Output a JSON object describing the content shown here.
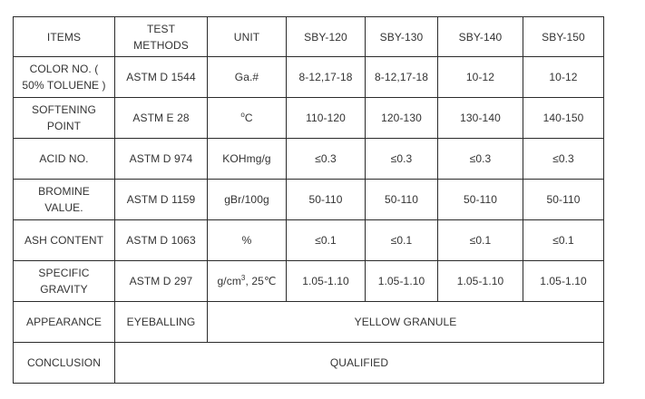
{
  "header": {
    "items": "ITEMS",
    "test_methods": "TEST METHODS",
    "unit": "UNIT",
    "grades": [
      "SBY-120",
      "SBY-130",
      "SBY-140",
      "SBY-150"
    ]
  },
  "rows": [
    {
      "item": "COLOR NO. ( 50% TOLUENE )",
      "method": "ASTM D 1544",
      "unit": "Ga.#",
      "values": [
        "8-12,17-18",
        "8-12,17-18",
        "10-12",
        "10-12"
      ]
    },
    {
      "item": "SOFTENING POINT",
      "method": "ASTM E 28",
      "unit_sup": "o",
      "unit_main": "C",
      "values": [
        "110-120",
        "120-130",
        "130-140",
        "140-150"
      ]
    },
    {
      "item": "ACID NO.",
      "method": "ASTM D 974",
      "unit": "KOHmg/g",
      "values": [
        "≤0.3",
        "≤0.3",
        "≤0.3",
        "≤0.3"
      ]
    },
    {
      "item": "BROMINE VALUE.",
      "method": "ASTM D 1159",
      "unit": "gBr/100g",
      "values": [
        "50-110",
        "50-110",
        "50-110",
        "50-110"
      ]
    },
    {
      "item": "ASH CONTENT",
      "method": "ASTM D 1063",
      "unit": "%",
      "values": [
        "≤0.1",
        "≤0.1",
        "≤0.1",
        "≤0.1"
      ]
    },
    {
      "item": "SPECIFIC GRAVITY",
      "method": "ASTM D 297",
      "unit_main": "g/cm",
      "unit_sup": "3",
      "unit_tail": ", 25℃",
      "values": [
        "1.05-1.10",
        "1.05-1.10",
        "1.05-1.10",
        "1.05-1.10"
      ]
    }
  ],
  "appearance": {
    "item": "APPEARANCE",
    "method": "EYEBALLING",
    "value": "YELLOW GRANULE"
  },
  "conclusion": {
    "item": "CONCLUSION",
    "value": "QUALIFIED"
  }
}
